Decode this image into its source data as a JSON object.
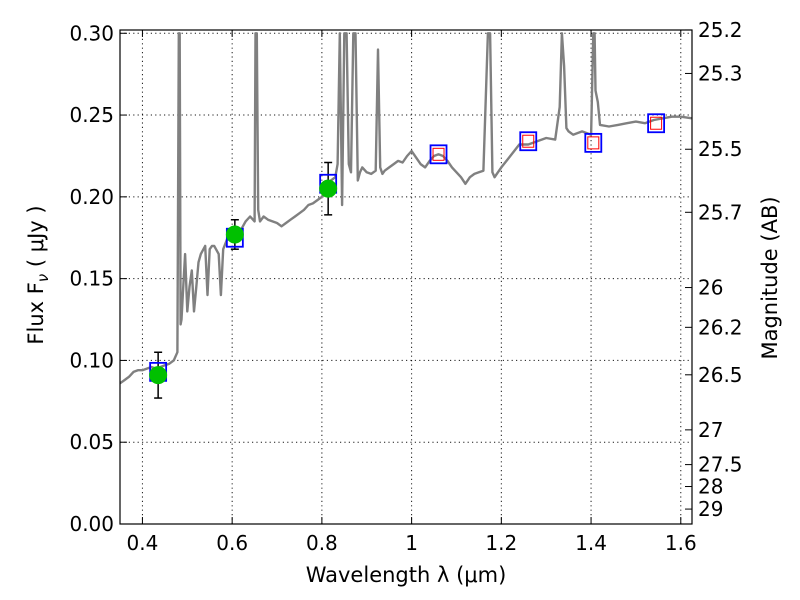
{
  "chart_data": {
    "type": "line",
    "xlabel": "Wavelength  λ (μm)",
    "ylabel": "Flux  F",
    "ylabel_sub": "ν",
    "ylabel_unit": "  ( μJy )",
    "y2label": "Magnitude (AB)",
    "xlim": [
      0.35,
      1.625
    ],
    "ylim": [
      0.0,
      0.302
    ],
    "grid": true,
    "x_ticks": [
      0.4,
      0.6,
      0.8,
      1.0,
      1.2,
      1.4,
      1.6
    ],
    "x_tick_labels": [
      "0.4",
      "0.6",
      "0.8",
      "1",
      "1.2",
      "1.4",
      "1.6"
    ],
    "y_ticks": [
      0.0,
      0.05,
      0.1,
      0.15,
      0.2,
      0.25,
      0.3
    ],
    "y_tick_labels": [
      "0.00",
      "0.05",
      "0.10",
      "0.15",
      "0.20",
      "0.25",
      "0.30"
    ],
    "y2_ticks": [
      25.2,
      25.3,
      25.5,
      25.7,
      26,
      26.2,
      26.5,
      27,
      27.5,
      28,
      29
    ],
    "y2_tick_labels": [
      "25.2",
      "25.3",
      "25.5",
      "25.7",
      "26",
      "26.2",
      "26.5",
      "27",
      "27.5",
      "28",
      "29"
    ],
    "series": [
      {
        "kind": "spectrum",
        "color": "#808080",
        "x": [
          0.35,
          0.36,
          0.37,
          0.38,
          0.39,
          0.4,
          0.41,
          0.42,
          0.43,
          0.44,
          0.45,
          0.46,
          0.47,
          0.478,
          0.481,
          0.483,
          0.485,
          0.487,
          0.49,
          0.495,
          0.5,
          0.505,
          0.51,
          0.515,
          0.52,
          0.525,
          0.53,
          0.54,
          0.545,
          0.55,
          0.555,
          0.56,
          0.57,
          0.575,
          0.58,
          0.59,
          0.6,
          0.61,
          0.62,
          0.63,
          0.64,
          0.65,
          0.652,
          0.655,
          0.658,
          0.662,
          0.67,
          0.68,
          0.69,
          0.7,
          0.71,
          0.72,
          0.73,
          0.74,
          0.75,
          0.76,
          0.77,
          0.78,
          0.79,
          0.8,
          0.81,
          0.82,
          0.83,
          0.835,
          0.84,
          0.845,
          0.85,
          0.855,
          0.86,
          0.865,
          0.87,
          0.875,
          0.88,
          0.885,
          0.89,
          0.9,
          0.91,
          0.92,
          0.925,
          0.93,
          0.935,
          0.94,
          0.95,
          0.96,
          0.97,
          0.98,
          0.99,
          1.0,
          1.01,
          1.02,
          1.03,
          1.04,
          1.05,
          1.06,
          1.07,
          1.08,
          1.09,
          1.1,
          1.11,
          1.12,
          1.13,
          1.14,
          1.15,
          1.16,
          1.17,
          1.175,
          1.18,
          1.185,
          1.19,
          1.2,
          1.22,
          1.24,
          1.26,
          1.28,
          1.3,
          1.32,
          1.33,
          1.335,
          1.34,
          1.345,
          1.35,
          1.36,
          1.38,
          1.4,
          1.405,
          1.408,
          1.41,
          1.415,
          1.42,
          1.44,
          1.46,
          1.48,
          1.5,
          1.52,
          1.54,
          1.56,
          1.58,
          1.6,
          1.625
        ],
        "y": [
          0.086,
          0.088,
          0.09,
          0.093,
          0.094,
          0.094,
          0.095,
          0.096,
          0.095,
          0.096,
          0.097,
          0.098,
          0.1,
          0.105,
          0.3,
          0.3,
          0.122,
          0.125,
          0.14,
          0.165,
          0.13,
          0.145,
          0.155,
          0.13,
          0.145,
          0.16,
          0.165,
          0.17,
          0.14,
          0.168,
          0.17,
          0.17,
          0.165,
          0.14,
          0.168,
          0.175,
          0.178,
          0.175,
          0.18,
          0.185,
          0.188,
          0.185,
          0.3,
          0.3,
          0.192,
          0.185,
          0.188,
          0.186,
          0.185,
          0.184,
          0.182,
          0.184,
          0.186,
          0.188,
          0.19,
          0.192,
          0.195,
          0.196,
          0.198,
          0.2,
          0.205,
          0.21,
          0.212,
          0.22,
          0.3,
          0.195,
          0.3,
          0.3,
          0.22,
          0.215,
          0.3,
          0.3,
          0.21,
          0.215,
          0.218,
          0.215,
          0.214,
          0.216,
          0.29,
          0.218,
          0.214,
          0.216,
          0.218,
          0.22,
          0.222,
          0.221,
          0.225,
          0.228,
          0.224,
          0.22,
          0.218,
          0.222,
          0.225,
          0.226,
          0.225,
          0.222,
          0.218,
          0.215,
          0.212,
          0.208,
          0.212,
          0.214,
          0.215,
          0.216,
          0.3,
          0.3,
          0.215,
          0.212,
          0.214,
          0.218,
          0.225,
          0.232,
          0.232,
          0.234,
          0.236,
          0.235,
          0.255,
          0.3,
          0.28,
          0.242,
          0.24,
          0.238,
          0.24,
          0.238,
          0.3,
          0.3,
          0.265,
          0.258,
          0.244,
          0.243,
          0.244,
          0.245,
          0.246,
          0.245,
          0.247,
          0.248,
          0.249,
          0.249,
          0.248
        ],
        "_note_": ""
      },
      {
        "kind": "observed",
        "marker": "green-circle",
        "color": "#00c000",
        "x": [
          0.435,
          0.606,
          0.814
        ],
        "y": [
          0.091,
          0.177,
          0.205
        ],
        "yerr": [
          0.014,
          0.009,
          0.016
        ]
      },
      {
        "kind": "model-bandpass",
        "marker": "blue-square",
        "color": "#0000ff",
        "x": [
          0.435,
          0.606,
          0.814,
          1.06,
          1.26,
          1.405,
          1.545
        ],
        "y": [
          0.093,
          0.175,
          0.208,
          0.226,
          0.234,
          0.233,
          0.245
        ]
      },
      {
        "kind": "predicted",
        "marker": "red-square-small",
        "color": "#ff0000",
        "x": [
          1.06,
          1.26,
          1.405,
          1.545
        ],
        "y": [
          0.226,
          0.234,
          0.233,
          0.245
        ]
      }
    ]
  }
}
